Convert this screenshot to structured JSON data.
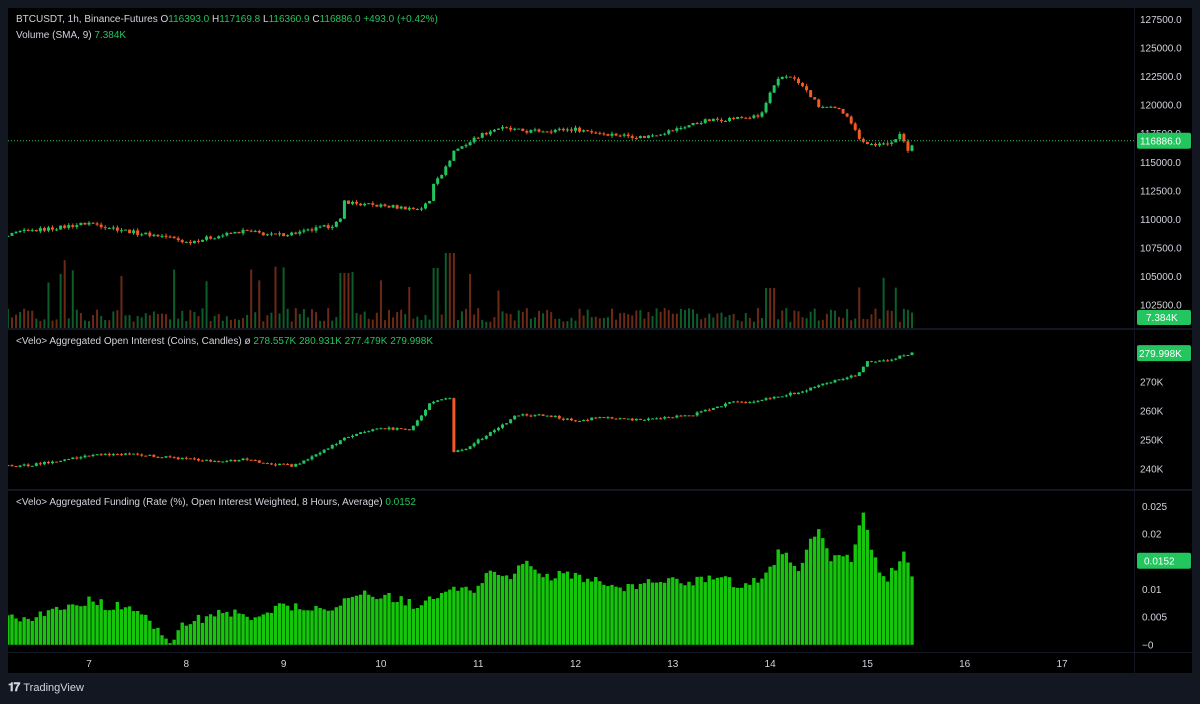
{
  "header": {
    "symbol": "BTCUSDT, 1h, Binance-Futures",
    "o_label": "O",
    "o_value": "116393.0",
    "h_label": "H",
    "h_value": "117169.8",
    "l_label": "L",
    "l_value": "116360.9",
    "c_label": "C",
    "c_value": "116886.0",
    "change": "+493.0 (+0.42%)",
    "volume_label": "Volume (SMA, 9)",
    "volume_value": "7.384K"
  },
  "oi_legend": {
    "label": "<Velo> Aggregated Open Interest (Coins, Candles)",
    "symbol": "ø",
    "o": "278.557K",
    "h": "280.931K",
    "l": "277.479K",
    "c": "279.998K"
  },
  "funding_legend": {
    "label": "<Velo> Aggregated Funding (Rate (%), Open Interest Weighted, 8 Hours, Average)",
    "value": "0.0152"
  },
  "footer": {
    "brand": "TradingView"
  },
  "colors": {
    "up": "#22c55e",
    "down": "#f05a24",
    "bg": "#000000",
    "text": "#d1d4dc"
  },
  "chart_data": [
    {
      "type": "candlestick",
      "title": "BTCUSDT, 1h, Binance-Futures",
      "x_ticks": [
        "7",
        "8",
        "9",
        "10",
        "11",
        "12",
        "13",
        "14",
        "15",
        "16",
        "17"
      ],
      "y_ticks": [
        "127500.0",
        "125000.0",
        "122500.0",
        "120000.0",
        "117500.0",
        "115000.0",
        "112500.0",
        "110000.0",
        "107500.0",
        "105000.0",
        "102500.0"
      ],
      "ylim": [
        100500,
        128500
      ],
      "last_price_label": "116886.0",
      "last_price": 116886,
      "closes_path": [
        [
          6.0,
          108100
        ],
        [
          6.3,
          108900
        ],
        [
          6.7,
          109300
        ],
        [
          7.0,
          109700
        ],
        [
          7.5,
          108800
        ],
        [
          7.8,
          108500
        ],
        [
          8.0,
          108000
        ],
        [
          8.3,
          108500
        ],
        [
          8.6,
          109000
        ],
        [
          8.9,
          108600
        ],
        [
          9.2,
          108900
        ],
        [
          9.5,
          109500
        ],
        [
          9.6,
          110000
        ],
        [
          9.62,
          111600
        ],
        [
          9.8,
          111300
        ],
        [
          10.0,
          111200
        ],
        [
          10.4,
          110900
        ],
        [
          10.5,
          111600
        ],
        [
          10.55,
          113500
        ],
        [
          10.65,
          114200
        ],
        [
          10.75,
          116000
        ],
        [
          10.9,
          116700
        ],
        [
          11.0,
          117300
        ],
        [
          11.2,
          118000
        ],
        [
          11.5,
          117700
        ],
        [
          12.0,
          117900
        ],
        [
          12.3,
          117500
        ],
        [
          12.7,
          117200
        ],
        [
          13.0,
          117800
        ],
        [
          13.3,
          118600
        ],
        [
          13.7,
          118900
        ],
        [
          13.9,
          119000
        ],
        [
          14.0,
          121000
        ],
        [
          14.1,
          122400
        ],
        [
          14.2,
          122600
        ],
        [
          14.35,
          121500
        ],
        [
          14.5,
          119900
        ],
        [
          14.7,
          119600
        ],
        [
          14.8,
          119100
        ],
        [
          14.9,
          117300
        ],
        [
          15.0,
          116600
        ],
        [
          15.2,
          116500
        ],
        [
          15.35,
          117600
        ],
        [
          15.4,
          115800
        ],
        [
          15.48,
          116886
        ]
      ],
      "volume_label": "Volume (SMA, 9)",
      "volume_last": "7.384K"
    },
    {
      "type": "candlestick",
      "title": "<Velo> Aggregated Open Interest (Coins, Candles)",
      "y_ticks": [
        "270K",
        "260K",
        "250K",
        "240K"
      ],
      "ylim": [
        233000,
        288000
      ],
      "last_value_label": "279.998K",
      "last_value": 279998,
      "closes_path": [
        [
          6.0,
          240800
        ],
        [
          6.4,
          241200
        ],
        [
          6.7,
          243000
        ],
        [
          7.0,
          244500
        ],
        [
          7.4,
          245200
        ],
        [
          7.8,
          244000
        ],
        [
          8.1,
          243000
        ],
        [
          8.4,
          242500
        ],
        [
          8.6,
          243200
        ],
        [
          8.9,
          241600
        ],
        [
          9.1,
          241000
        ],
        [
          9.3,
          244000
        ],
        [
          9.5,
          248000
        ],
        [
          9.65,
          251000
        ],
        [
          9.8,
          252700
        ],
        [
          10.0,
          254000
        ],
        [
          10.3,
          253500
        ],
        [
          10.5,
          262500
        ],
        [
          10.65,
          264500
        ],
        [
          10.72,
          264000
        ],
        [
          10.75,
          246000
        ],
        [
          10.9,
          247500
        ],
        [
          11.1,
          252000
        ],
        [
          11.4,
          258500
        ],
        [
          11.7,
          258500
        ],
        [
          12.0,
          256500
        ],
        [
          12.3,
          258000
        ],
        [
          12.6,
          257000
        ],
        [
          12.9,
          257600
        ],
        [
          13.2,
          258500
        ],
        [
          13.4,
          261000
        ],
        [
          13.6,
          263000
        ],
        [
          13.9,
          263500
        ],
        [
          14.0,
          264500
        ],
        [
          14.3,
          266500
        ],
        [
          14.5,
          269000
        ],
        [
          14.7,
          271000
        ],
        [
          14.9,
          272500
        ],
        [
          15.0,
          277000
        ],
        [
          15.2,
          277500
        ],
        [
          15.35,
          279000
        ],
        [
          15.48,
          279998
        ]
      ]
    },
    {
      "type": "bar",
      "title": "<Velo> Aggregated Funding (Rate (%), Open Interest Weighted, 8 Hours, Average)",
      "y_ticks": [
        "0.025",
        "0.02",
        "0.01",
        "0.005",
        "0"
      ],
      "ylim": [
        -0.0013,
        0.0278
      ],
      "last_value_label": "0.0152",
      "last_value": 0.0152,
      "values_path": [
        [
          6.0,
          0.005
        ],
        [
          6.1,
          0.006
        ],
        [
          6.3,
          0.005
        ],
        [
          6.4,
          0.005
        ],
        [
          6.6,
          0.006
        ],
        [
          6.8,
          0.007
        ],
        [
          7.0,
          0.008
        ],
        [
          7.2,
          0.007
        ],
        [
          7.4,
          0.007
        ],
        [
          7.55,
          0.005
        ],
        [
          7.7,
          0.003
        ],
        [
          7.75,
          0.001
        ],
        [
          7.8,
          0.0005
        ],
        [
          7.9,
          0.002
        ],
        [
          8.0,
          0.004
        ],
        [
          8.2,
          0.005
        ],
        [
          8.4,
          0.006
        ],
        [
          8.6,
          0.005
        ],
        [
          8.8,
          0.006
        ],
        [
          9.0,
          0.007
        ],
        [
          9.2,
          0.007
        ],
        [
          9.4,
          0.006
        ],
        [
          9.6,
          0.008
        ],
        [
          9.8,
          0.009
        ],
        [
          10.0,
          0.009
        ],
        [
          10.2,
          0.008
        ],
        [
          10.4,
          0.007
        ],
        [
          10.6,
          0.009
        ],
        [
          10.8,
          0.01
        ],
        [
          11.0,
          0.01
        ],
        [
          11.1,
          0.014
        ],
        [
          11.3,
          0.012
        ],
        [
          11.5,
          0.015
        ],
        [
          11.7,
          0.012
        ],
        [
          11.9,
          0.013
        ],
        [
          12.1,
          0.012
        ],
        [
          12.3,
          0.011
        ],
        [
          12.5,
          0.01
        ],
        [
          12.7,
          0.011
        ],
        [
          12.9,
          0.012
        ],
        [
          13.1,
          0.011
        ],
        [
          13.3,
          0.012
        ],
        [
          13.5,
          0.013
        ],
        [
          13.7,
          0.01
        ],
        [
          13.9,
          0.012
        ],
        [
          14.0,
          0.014
        ],
        [
          14.1,
          0.017
        ],
        [
          14.3,
          0.014
        ],
        [
          14.4,
          0.018
        ],
        [
          14.5,
          0.021
        ],
        [
          14.6,
          0.016
        ],
        [
          14.7,
          0.016
        ],
        [
          14.85,
          0.015
        ],
        [
          14.95,
          0.025
        ],
        [
          15.0,
          0.02
        ],
        [
          15.1,
          0.014
        ],
        [
          15.2,
          0.012
        ],
        [
          15.3,
          0.014
        ],
        [
          15.38,
          0.018
        ],
        [
          15.45,
          0.012
        ],
        [
          15.48,
          0.0152
        ]
      ]
    }
  ]
}
